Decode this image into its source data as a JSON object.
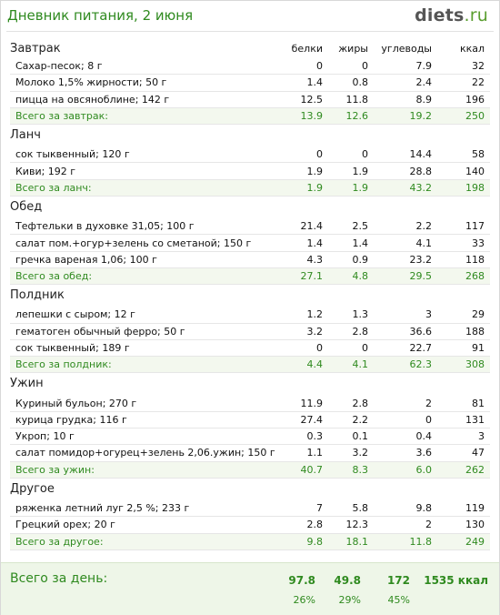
{
  "header": {
    "title": "Дневник питания, 2 июня",
    "logo_main": "diets",
    "logo_suffix": ".ru"
  },
  "columns": {
    "protein": "белки",
    "fat": "жиры",
    "carbs": "углеводы",
    "kcal": "ккал"
  },
  "meals": [
    {
      "name": "Завтрак",
      "items": [
        {
          "name": "Сахар-песок; 8 г",
          "p": "0",
          "f": "0",
          "c": "7.9",
          "k": "32"
        },
        {
          "name": "Молоко 1,5% жирности; 50 г",
          "p": "1.4",
          "f": "0.8",
          "c": "2.4",
          "k": "22"
        },
        {
          "name": "пицца на овсяноблине; 142 г",
          "p": "12.5",
          "f": "11.8",
          "c": "8.9",
          "k": "196"
        }
      ],
      "total": {
        "label": "Всего за завтрак:",
        "p": "13.9",
        "f": "12.6",
        "c": "19.2",
        "k": "250"
      }
    },
    {
      "name": "Ланч",
      "items": [
        {
          "name": "сок тыквенный; 120 г",
          "p": "0",
          "f": "0",
          "c": "14.4",
          "k": "58"
        },
        {
          "name": "Киви; 192 г",
          "p": "1.9",
          "f": "1.9",
          "c": "28.8",
          "k": "140"
        }
      ],
      "total": {
        "label": "Всего за ланч:",
        "p": "1.9",
        "f": "1.9",
        "c": "43.2",
        "k": "198"
      }
    },
    {
      "name": "Обед",
      "items": [
        {
          "name": "Тефтельки в духовке 31,05; 100 г",
          "p": "21.4",
          "f": "2.5",
          "c": "2.2",
          "k": "117"
        },
        {
          "name": "салат пом.+огур+зелень со сметаной; 150 г",
          "p": "1.4",
          "f": "1.4",
          "c": "4.1",
          "k": "33"
        },
        {
          "name": "гречка вареная 1,06; 100 г",
          "p": "4.3",
          "f": "0.9",
          "c": "23.2",
          "k": "118"
        }
      ],
      "total": {
        "label": "Всего за обед:",
        "p": "27.1",
        "f": "4.8",
        "c": "29.5",
        "k": "268"
      }
    },
    {
      "name": "Полдник",
      "items": [
        {
          "name": "лепешки с сыром; 12 г",
          "p": "1.2",
          "f": "1.3",
          "c": "3",
          "k": "29"
        },
        {
          "name": "гематоген обычный ферро; 50 г",
          "p": "3.2",
          "f": "2.8",
          "c": "36.6",
          "k": "188"
        },
        {
          "name": "сок тыквенный; 189 г",
          "p": "0",
          "f": "0",
          "c": "22.7",
          "k": "91"
        }
      ],
      "total": {
        "label": "Всего за полдник:",
        "p": "4.4",
        "f": "4.1",
        "c": "62.3",
        "k": "308"
      }
    },
    {
      "name": "Ужин",
      "items": [
        {
          "name": "Куриный бульон; 270 г",
          "p": "11.9",
          "f": "2.8",
          "c": "2",
          "k": "81"
        },
        {
          "name": "курица грудка; 116 г",
          "p": "27.4",
          "f": "2.2",
          "c": "0",
          "k": "131"
        },
        {
          "name": "Укроп; 10 г",
          "p": "0.3",
          "f": "0.1",
          "c": "0.4",
          "k": "3"
        },
        {
          "name": "салат помидор+огурец+зелень 2,06.ужин; 150 г",
          "p": "1.1",
          "f": "3.2",
          "c": "3.6",
          "k": "47"
        }
      ],
      "total": {
        "label": "Всего за ужин:",
        "p": "40.7",
        "f": "8.3",
        "c": "6.0",
        "k": "262"
      }
    },
    {
      "name": "Другое",
      "items": [
        {
          "name": "ряженка летний луг 2,5 %; 233 г",
          "p": "7",
          "f": "5.8",
          "c": "9.8",
          "k": "119"
        },
        {
          "name": "Грецкий орех; 20 г",
          "p": "2.8",
          "f": "12.3",
          "c": "2",
          "k": "130"
        }
      ],
      "total": {
        "label": "Всего за другое:",
        "p": "9.8",
        "f": "18.1",
        "c": "11.8",
        "k": "249"
      }
    }
  ],
  "day_total": {
    "label": "Всего за день:",
    "p": "97.8",
    "f": "49.8",
    "c": "172",
    "k": "1535 ккал",
    "p_pct": "26%",
    "f_pct": "29%",
    "c_pct": "45%"
  }
}
